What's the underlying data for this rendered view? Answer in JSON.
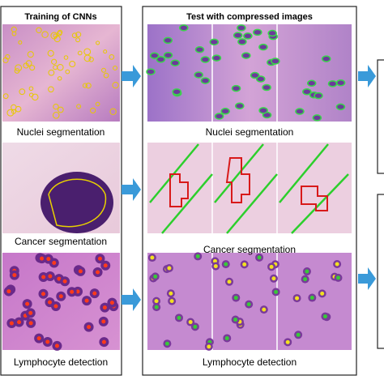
{
  "left_panel": {
    "title": "Training of CNNs",
    "labels": [
      "Nuclei segmentation",
      "Cancer segmentation",
      "Lymphocyte detection"
    ]
  },
  "middle_panel": {
    "title": "Test with compressed images",
    "labels": [
      "Nuclei segmentation",
      "Cancer segmentation",
      "Lymphocyte detection"
    ]
  }
}
